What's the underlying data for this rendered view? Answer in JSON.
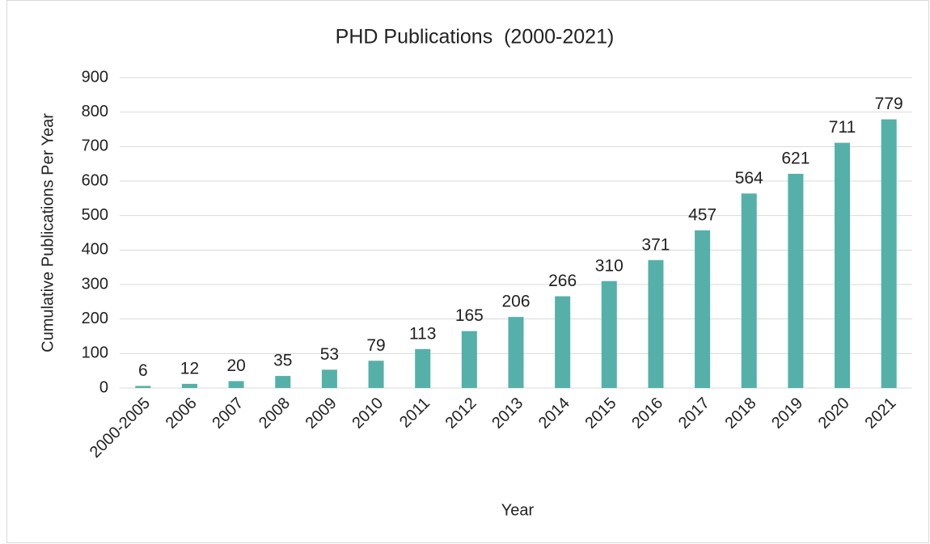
{
  "chart_data": {
    "type": "bar",
    "title": "PHD Publications  (2000-2021)",
    "x_label": "Year",
    "y_label": "Cumulative Publications Per Year",
    "categories": [
      "2000-2005",
      "2006",
      "2007",
      "2008",
      "2009",
      "2010",
      "2011",
      "2012",
      "2013",
      "2014",
      "2015",
      "2016",
      "2017",
      "2018",
      "2019",
      "2020",
      "2021"
    ],
    "values": [
      6,
      12,
      20,
      35,
      53,
      79,
      113,
      165,
      206,
      266,
      310,
      371,
      457,
      564,
      621,
      711,
      779
    ],
    "color": "#55b0aa",
    "ylim": [
      0,
      900
    ],
    "yticks": [
      0,
      100,
      200,
      300,
      400,
      500,
      600,
      700,
      800,
      900
    ],
    "grid": true
  }
}
